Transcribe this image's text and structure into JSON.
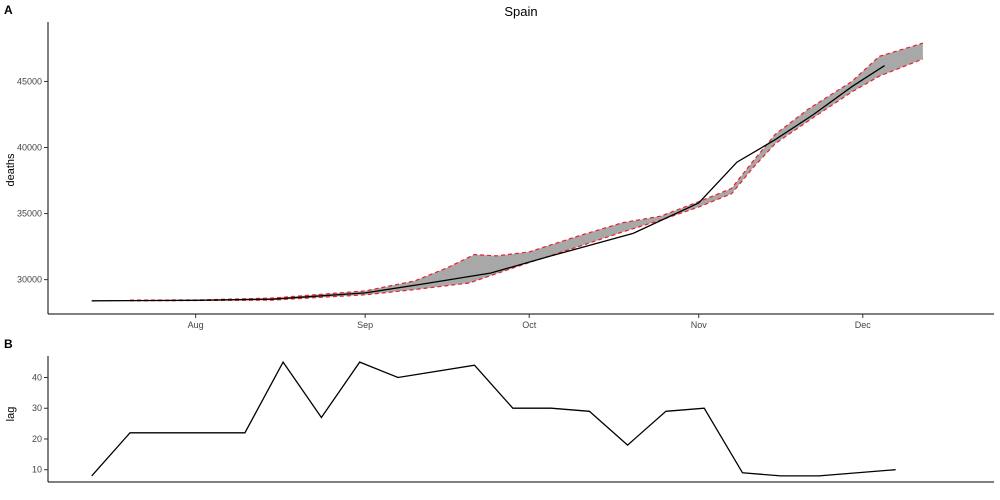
{
  "chart_data": [
    {
      "panel": "A",
      "type": "line",
      "title": "Spain",
      "xlabel": "",
      "ylabel": "deaths",
      "x_ticks": [
        "Aug",
        "Sep",
        "Oct",
        "Nov",
        "Dec"
      ],
      "x_tick_dates": [
        "2020-08-01",
        "2020-09-01",
        "2020-10-01",
        "2020-11-01",
        "2020-12-01"
      ],
      "xlim": [
        "2020-07-05",
        "2020-12-25"
      ],
      "y_ticks": [
        "30000",
        "35000",
        "40000",
        "45000"
      ],
      "ylim": [
        27400,
        49500
      ],
      "grid": false,
      "series": [
        {
          "kind": "line",
          "color": "#000000",
          "points": [
            [
              "2020-07-13",
              28400
            ],
            [
              "2020-08-01",
              28440
            ],
            [
              "2020-08-15",
              28520
            ],
            [
              "2020-09-01",
              29000
            ],
            [
              "2020-09-12",
              29700
            ],
            [
              "2020-09-24",
              30500
            ],
            [
              "2020-10-05",
              31800
            ],
            [
              "2020-10-20",
              33500
            ],
            [
              "2020-11-01",
              35800
            ],
            [
              "2020-11-08",
              38900
            ],
            [
              "2020-11-15",
              40600
            ],
            [
              "2020-11-22",
              42500
            ],
            [
              "2020-11-29",
              44600
            ],
            [
              "2020-12-05",
              46200
            ]
          ]
        },
        {
          "kind": "band",
          "fill": "#a8a8a8",
          "edge_color": "#e8202a",
          "upper": [
            [
              "2020-07-20",
              28450
            ],
            [
              "2020-08-01",
              28460
            ],
            [
              "2020-08-15",
              28600
            ],
            [
              "2020-09-01",
              29150
            ],
            [
              "2020-09-10",
              29900
            ],
            [
              "2020-09-16",
              30900
            ],
            [
              "2020-09-21",
              31900
            ],
            [
              "2020-09-25",
              31800
            ],
            [
              "2020-10-01",
              32100
            ],
            [
              "2020-10-10",
              33300
            ],
            [
              "2020-10-18",
              34300
            ],
            [
              "2020-10-25",
              34800
            ],
            [
              "2020-11-01",
              35900
            ],
            [
              "2020-11-07",
              36900
            ],
            [
              "2020-11-11",
              39000
            ],
            [
              "2020-11-15",
              41000
            ],
            [
              "2020-11-21",
              42900
            ],
            [
              "2020-11-29",
              45000
            ],
            [
              "2020-12-04",
              46900
            ],
            [
              "2020-12-12",
              47900
            ]
          ],
          "lower": [
            [
              "2020-07-20",
              28400
            ],
            [
              "2020-08-01",
              28420
            ],
            [
              "2020-08-15",
              28450
            ],
            [
              "2020-09-01",
              28850
            ],
            [
              "2020-09-10",
              29250
            ],
            [
              "2020-09-20",
              29750
            ],
            [
              "2020-10-01",
              31300
            ],
            [
              "2020-10-10",
              32500
            ],
            [
              "2020-10-18",
              33600
            ],
            [
              "2020-10-25",
              34500
            ],
            [
              "2020-11-01",
              35500
            ],
            [
              "2020-11-07",
              36500
            ],
            [
              "2020-11-11",
              38500
            ],
            [
              "2020-11-15",
              40300
            ],
            [
              "2020-11-21",
              42000
            ],
            [
              "2020-11-29",
              44200
            ],
            [
              "2020-12-04",
              45400
            ],
            [
              "2020-12-12",
              46700
            ]
          ]
        }
      ]
    },
    {
      "panel": "B",
      "type": "line",
      "xlabel": "",
      "ylabel": "lag",
      "xlim": [
        "2020-07-05",
        "2020-12-25"
      ],
      "y_ticks": [
        "10",
        "20",
        "30",
        "40"
      ],
      "ylim": [
        6,
        47
      ],
      "grid": false,
      "series": [
        {
          "kind": "line",
          "color": "#000000",
          "points": [
            [
              "2020-07-13",
              8
            ],
            [
              "2020-07-20",
              22
            ],
            [
              "2020-08-10",
              22
            ],
            [
              "2020-08-17",
              45
            ],
            [
              "2020-08-24",
              27
            ],
            [
              "2020-08-31",
              45
            ],
            [
              "2020-09-07",
              40
            ],
            [
              "2020-09-21",
              44
            ],
            [
              "2020-09-28",
              30
            ],
            [
              "2020-10-05",
              30
            ],
            [
              "2020-10-12",
              29
            ],
            [
              "2020-10-19",
              18
            ],
            [
              "2020-10-26",
              29
            ],
            [
              "2020-11-02",
              30
            ],
            [
              "2020-11-09",
              9
            ],
            [
              "2020-11-16",
              8
            ],
            [
              "2020-11-23",
              8
            ],
            [
              "2020-12-07",
              10
            ]
          ]
        }
      ]
    }
  ]
}
